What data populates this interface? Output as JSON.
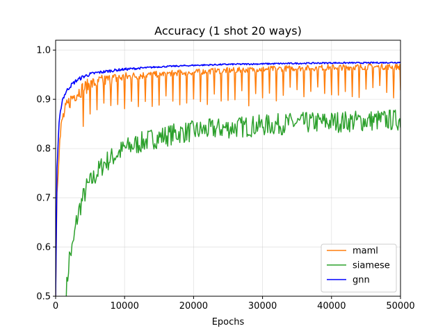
{
  "chart_data": {
    "type": "line",
    "title": "Accuracy (1 shot 20 ways)",
    "xlabel": "Epochs",
    "ylabel": "",
    "xlim": [
      0,
      50000
    ],
    "ylim": [
      0.5,
      1.02
    ],
    "x_ticks": [
      0,
      10000,
      20000,
      30000,
      40000,
      50000
    ],
    "y_ticks": [
      0.5,
      0.6,
      0.7,
      0.8,
      0.9,
      1.0
    ],
    "x_tick_labels": [
      "0",
      "10000",
      "20000",
      "30000",
      "40000",
      "50000"
    ],
    "y_tick_labels": [
      "0.5",
      "0.6",
      "0.7",
      "0.8",
      "0.9",
      "1.0"
    ],
    "grid": true,
    "legend_position": "lower-right",
    "series": [
      {
        "name": "maml",
        "color": "#ff7f0e",
        "x": [
          0,
          200,
          500,
          800,
          1000,
          1500,
          2000,
          2500,
          3000,
          4000,
          5000,
          6000,
          7000,
          8000,
          9000,
          10000,
          12000,
          14000,
          16000,
          18000,
          20000,
          22000,
          24000,
          26000,
          28000,
          30000,
          32000,
          34000,
          36000,
          38000,
          40000,
          42000,
          44000,
          46000,
          48000,
          50000
        ],
        "y": [
          0.5,
          0.72,
          0.8,
          0.84,
          0.86,
          0.88,
          0.895,
          0.905,
          0.912,
          0.922,
          0.93,
          0.935,
          0.938,
          0.941,
          0.943,
          0.945,
          0.948,
          0.95,
          0.952,
          0.954,
          0.955,
          0.957,
          0.958,
          0.959,
          0.96,
          0.961,
          0.962,
          0.963,
          0.963,
          0.964,
          0.965,
          0.965,
          0.966,
          0.966,
          0.966,
          0.966
        ]
      },
      {
        "name": "siamese",
        "color": "#2ca02c",
        "x": [
          1500,
          2000,
          2500,
          3000,
          3500,
          4000,
          4500,
          5000,
          6000,
          7000,
          8000,
          9000,
          10000,
          11000,
          12000,
          13000,
          14000,
          15000,
          16000,
          17000,
          18000,
          20000,
          22000,
          24000,
          26000,
          28000,
          30000,
          32000,
          34000,
          36000,
          38000,
          40000,
          42000,
          44000,
          46000,
          48000,
          50000
        ],
        "y": [
          0.5,
          0.58,
          0.6,
          0.65,
          0.68,
          0.7,
          0.72,
          0.73,
          0.75,
          0.77,
          0.78,
          0.79,
          0.8,
          0.805,
          0.81,
          0.815,
          0.82,
          0.823,
          0.826,
          0.829,
          0.832,
          0.835,
          0.838,
          0.841,
          0.843,
          0.845,
          0.847,
          0.849,
          0.851,
          0.852,
          0.853,
          0.854,
          0.855,
          0.856,
          0.857,
          0.858,
          0.858
        ]
      },
      {
        "name": "gnn",
        "color": "#0000ff",
        "x": [
          0,
          200,
          500,
          800,
          1000,
          1500,
          2000,
          2500,
          3000,
          4000,
          5000,
          6000,
          7000,
          8000,
          10000,
          12000,
          15000,
          20000,
          25000,
          30000,
          35000,
          40000,
          45000,
          50000
        ],
        "y": [
          0.5,
          0.76,
          0.85,
          0.885,
          0.9,
          0.915,
          0.925,
          0.932,
          0.938,
          0.946,
          0.951,
          0.954,
          0.956,
          0.958,
          0.961,
          0.963,
          0.966,
          0.969,
          0.971,
          0.972,
          0.973,
          0.974,
          0.974,
          0.975
        ]
      }
    ]
  }
}
